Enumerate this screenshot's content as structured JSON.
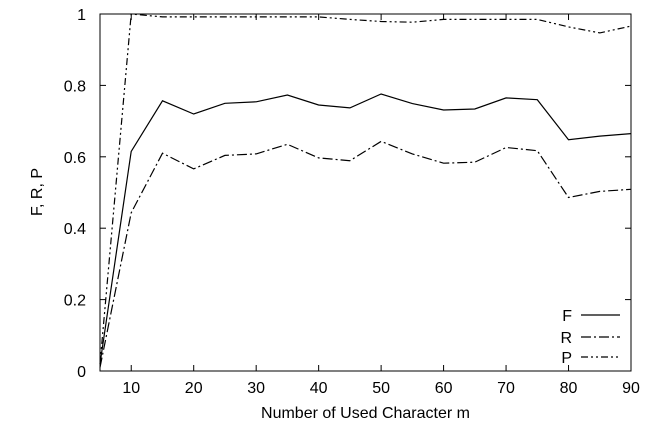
{
  "chart_data": {
    "type": "line",
    "xlabel": "Number of Used Character m",
    "ylabel": "F, R, P",
    "xlim": [
      5,
      90
    ],
    "ylim": [
      0,
      1
    ],
    "xticks": [
      10,
      20,
      30,
      40,
      50,
      60,
      70,
      80,
      90
    ],
    "yticks": [
      0,
      0.2,
      0.4,
      0.6,
      0.8,
      1
    ],
    "ytick_labels": [
      "0",
      "0.2",
      "0.4",
      "0.6",
      "0.8",
      "1"
    ],
    "grid": false,
    "legend": "bottom-right",
    "x": [
      5,
      10,
      15,
      20,
      25,
      30,
      35,
      40,
      45,
      50,
      55,
      60,
      65,
      70,
      75,
      80,
      85,
      90
    ],
    "series": [
      {
        "name": "F",
        "dash": "solid",
        "values": [
          0.02,
          0.615,
          0.757,
          0.72,
          0.75,
          0.754,
          0.773,
          0.745,
          0.737,
          0.776,
          0.749,
          0.731,
          0.734,
          0.765,
          0.76,
          0.648,
          0.658,
          0.665
        ]
      },
      {
        "name": "R",
        "dash": "dash-dot",
        "values": [
          0.01,
          0.443,
          0.61,
          0.566,
          0.604,
          0.608,
          0.635,
          0.597,
          0.589,
          0.643,
          0.608,
          0.582,
          0.585,
          0.626,
          0.617,
          0.486,
          0.503,
          0.509
        ]
      },
      {
        "name": "P",
        "dash": "dash-dot-dot",
        "values": [
          0.02,
          1.0,
          0.992,
          0.992,
          0.992,
          0.992,
          0.992,
          0.992,
          0.985,
          0.979,
          0.977,
          0.985,
          0.985,
          0.985,
          0.985,
          0.964,
          0.947,
          0.966
        ]
      }
    ]
  }
}
